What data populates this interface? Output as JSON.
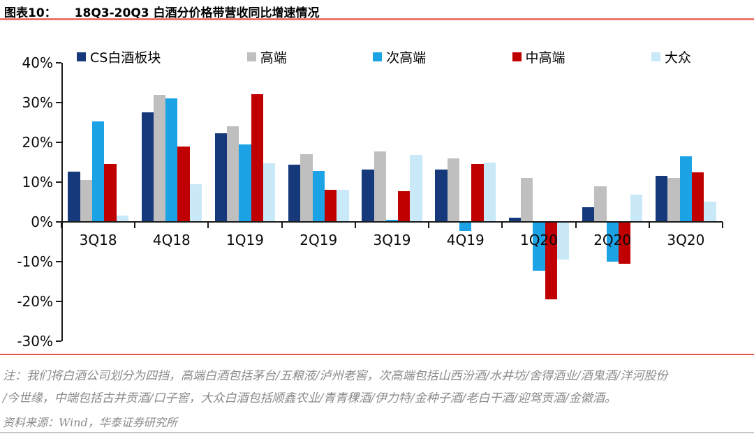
{
  "header": {
    "tag": "图表10：",
    "title": "18Q3-20Q3 白酒分价格带营收同比增速情况"
  },
  "chart_data": {
    "type": "bar",
    "title": "18Q3-20Q3 白酒分价格带营收同比增速情况",
    "categories": [
      "3Q18",
      "4Q18",
      "1Q19",
      "2Q19",
      "3Q19",
      "4Q19",
      "1Q20",
      "2Q20",
      "3Q20"
    ],
    "series": [
      {
        "name": "CS白酒板块",
        "color": "#16397B",
        "values": [
          12.7,
          27.6,
          22.2,
          14.4,
          13.2,
          13.2,
          1.0,
          3.7,
          11.5
        ]
      },
      {
        "name": "高端",
        "color": "#BFBFBF",
        "values": [
          10.5,
          32.0,
          24.0,
          17.0,
          17.7,
          16.0,
          11.0,
          8.9,
          11.0
        ]
      },
      {
        "name": "次高端",
        "color": "#1BA3E6",
        "values": [
          25.2,
          31.0,
          19.5,
          12.8,
          0.5,
          -2.2,
          -12.2,
          -10.0,
          16.5
        ]
      },
      {
        "name": "中高端",
        "color": "#C00000",
        "values": [
          14.5,
          18.9,
          32.1,
          8.0,
          7.8,
          14.6,
          -19.4,
          -10.5,
          12.5
        ]
      },
      {
        "name": "大众",
        "color": "#C9E8F8",
        "values": [
          1.5,
          9.5,
          14.8,
          8.1,
          16.8,
          15.0,
          -9.5,
          6.8,
          5.1
        ]
      }
    ],
    "xlabel": "",
    "ylabel": "",
    "ylim": [
      -30,
      40
    ],
    "ytick_step": 10,
    "ytick_labels": [
      "40%",
      "30%",
      "20%",
      "10%",
      "0%",
      "-10%",
      "-20%",
      "-30%"
    ],
    "grid": false,
    "legend_position": "top"
  },
  "footnote": {
    "line1": "注：我们将白酒公司划分为四挡，高端白酒包括茅台/五粮液/泸州老窖，次高端包括山西汾酒/水井坊/舍得酒业/酒鬼酒/洋河股份",
    "line2": "/今世缘，中端包括古井贡酒/口子窖，大众白酒包括顺鑫农业/青青稞酒/伊力特/金种子酒/老白干酒/迎驾贡酒/金徽酒。"
  },
  "source": "资料来源：Wind，华泰证券研究所"
}
